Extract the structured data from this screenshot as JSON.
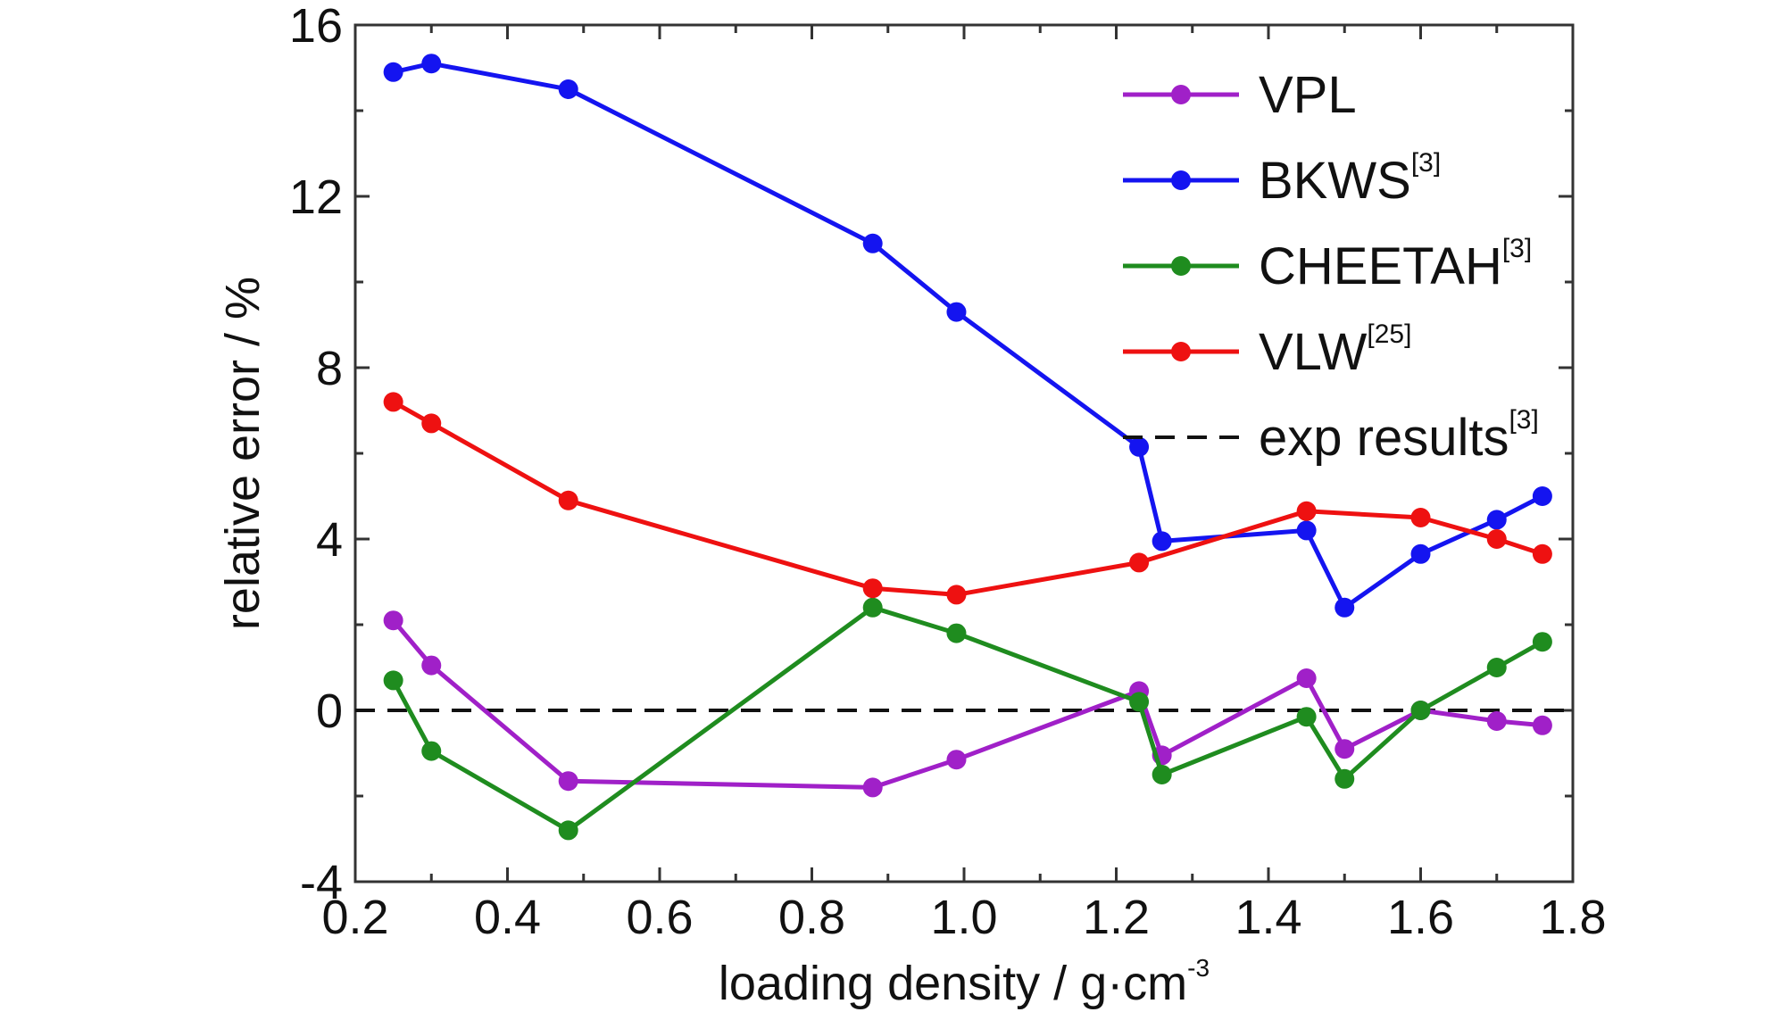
{
  "chart_data": {
    "type": "line",
    "xlabel": "loading density / g·cm",
    "xlabel_sup": "-3",
    "ylabel": "relative error / %",
    "xlim": [
      0.2,
      1.8
    ],
    "ylim": [
      -4,
      16
    ],
    "xticks": [
      0.2,
      0.4,
      0.6,
      0.8,
      1.0,
      1.2,
      1.4,
      1.6,
      1.8
    ],
    "xtick_labels": [
      "0.2",
      "0.4",
      "0.6",
      "0.8",
      "1.0",
      "1.2",
      "1.4",
      "1.6",
      "1.8"
    ],
    "yticks": [
      -4,
      0,
      4,
      8,
      12,
      16
    ],
    "ytick_labels": [
      "-4",
      "0",
      "4",
      "8",
      "12",
      "16"
    ],
    "legend_position": "top-right",
    "grid": false,
    "x": [
      0.25,
      0.3,
      0.48,
      0.88,
      0.99,
      1.23,
      1.26,
      1.45,
      1.5,
      1.6,
      1.7,
      1.76
    ],
    "series": [
      {
        "name": "VPL",
        "sup": "",
        "color": "#a020c8",
        "values": [
          2.1,
          1.05,
          -1.65,
          -1.8,
          -1.15,
          0.45,
          -1.05,
          0.75,
          -0.9,
          0.0,
          -0.25,
          -0.35
        ]
      },
      {
        "name": "BKWS",
        "sup": "[3]",
        "color": "#1414f0",
        "values": [
          14.9,
          15.1,
          14.5,
          10.9,
          9.3,
          6.15,
          3.95,
          4.2,
          2.4,
          3.65,
          4.45,
          5.0
        ]
      },
      {
        "name": "CHEETAH",
        "sup": "[3]",
        "color": "#1f8c1f",
        "values": [
          0.7,
          -0.95,
          -2.8,
          2.4,
          1.8,
          0.2,
          -1.5,
          -0.15,
          -1.6,
          0.0,
          1.0,
          1.6
        ]
      },
      {
        "name": "VLW",
        "sup": "[25]",
        "color": "#ee1111",
        "values": [
          7.2,
          6.7,
          4.9,
          2.85,
          2.7,
          3.45,
          null,
          4.65,
          null,
          4.5,
          4.0,
          3.65
        ]
      }
    ],
    "reference_line": {
      "name": "exp results",
      "sup": "[3]",
      "y": 0,
      "color": "#111111",
      "style": "dashed"
    }
  }
}
